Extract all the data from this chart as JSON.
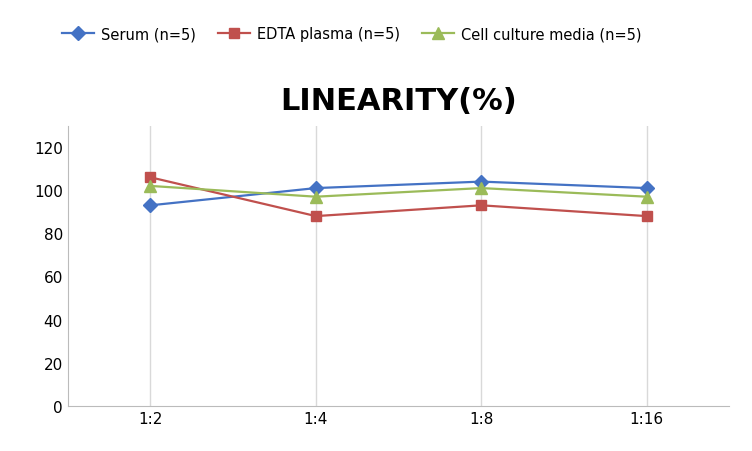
{
  "title": "LINEARITY(%)",
  "title_fontsize": 22,
  "title_fontweight": "bold",
  "x_labels": [
    "1:2",
    "1:4",
    "1:8",
    "1:16"
  ],
  "x_positions": [
    0,
    1,
    2,
    3
  ],
  "series": [
    {
      "label": "Serum (n=5)",
      "color": "#4472C4",
      "marker": "D",
      "markersize": 7,
      "values": [
        93,
        101,
        104,
        101
      ]
    },
    {
      "label": "EDTA plasma (n=5)",
      "color": "#C0504D",
      "marker": "s",
      "markersize": 7,
      "values": [
        106,
        88,
        93,
        88
      ]
    },
    {
      "label": "Cell culture media (n=5)",
      "color": "#9BBB59",
      "marker": "^",
      "markersize": 8,
      "values": [
        102,
        97,
        101,
        97
      ]
    }
  ],
  "ylim": [
    0,
    130
  ],
  "yticks": [
    0,
    20,
    40,
    60,
    80,
    100,
    120
  ],
  "grid_color": "#D9D9D9",
  "background_color": "#FFFFFF",
  "legend_fontsize": 10.5,
  "tick_fontsize": 11,
  "linewidth": 1.6
}
